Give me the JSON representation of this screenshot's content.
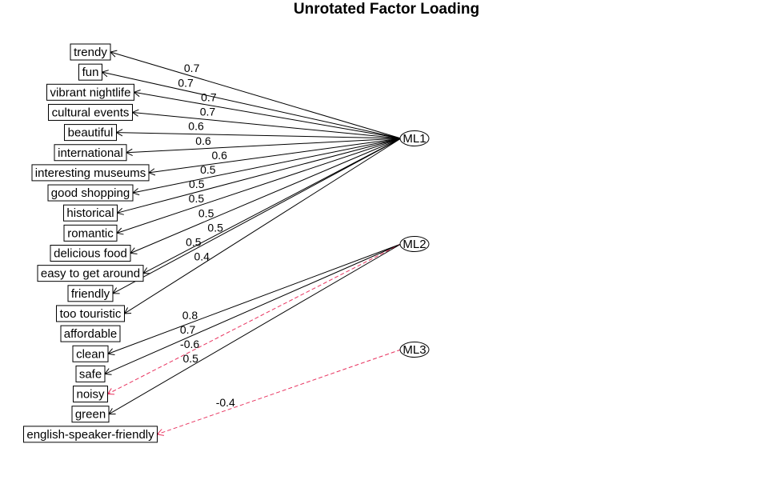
{
  "title": "Unrotated Factor Loading",
  "colors": {
    "positive": "#000000",
    "negative": "#e8335f",
    "box": "#000000"
  },
  "factors": [
    "ML1",
    "ML2",
    "ML3"
  ],
  "variables": [
    "trendy",
    "fun",
    "vibrant nightlife",
    "cultural events",
    "beautiful",
    "international",
    "interesting museums",
    "good shopping",
    "historical",
    "romantic",
    "delicious food",
    "easy to get around",
    "friendly",
    "too touristic",
    "affordable",
    "clean",
    "safe",
    "noisy",
    "green",
    "english-speaker-friendly"
  ],
  "loadings": [
    {
      "factor": "ML1",
      "variable": "trendy",
      "label": "0.7",
      "value": 0.7
    },
    {
      "factor": "ML1",
      "variable": "fun",
      "label": "0.7",
      "value": 0.7
    },
    {
      "factor": "ML1",
      "variable": "vibrant nightlife",
      "label": "0.7",
      "value": 0.7
    },
    {
      "factor": "ML1",
      "variable": "cultural events",
      "label": "0.7",
      "value": 0.7
    },
    {
      "factor": "ML1",
      "variable": "beautiful",
      "label": "0.6",
      "value": 0.6
    },
    {
      "factor": "ML1",
      "variable": "international",
      "label": "0.6",
      "value": 0.6
    },
    {
      "factor": "ML1",
      "variable": "interesting museums",
      "label": "0.6",
      "value": 0.6
    },
    {
      "factor": "ML1",
      "variable": "good shopping",
      "label": "0.5",
      "value": 0.5
    },
    {
      "factor": "ML1",
      "variable": "historical",
      "label": "0.5",
      "value": 0.5
    },
    {
      "factor": "ML1",
      "variable": "romantic",
      "label": "0.5",
      "value": 0.5
    },
    {
      "factor": "ML1",
      "variable": "delicious food",
      "label": "0.5",
      "value": 0.5
    },
    {
      "factor": "ML1",
      "variable": "easy to get around",
      "label": "0.5",
      "value": 0.5
    },
    {
      "factor": "ML1",
      "variable": "friendly",
      "label": "0.5",
      "value": 0.5
    },
    {
      "factor": "ML1",
      "variable": "too touristic",
      "label": "0.4",
      "value": 0.4
    },
    {
      "factor": "ML2",
      "variable": "clean",
      "label": "0.8",
      "value": 0.8
    },
    {
      "factor": "ML2",
      "variable": "safe",
      "label": "0.7",
      "value": 0.7
    },
    {
      "factor": "ML2",
      "variable": "noisy",
      "label": "-0.6",
      "value": -0.6
    },
    {
      "factor": "ML2",
      "variable": "green",
      "label": "0.5",
      "value": 0.5
    },
    {
      "factor": "ML3",
      "variable": "english-speaker-friendly",
      "label": "-0.4",
      "value": -0.4
    }
  ]
}
